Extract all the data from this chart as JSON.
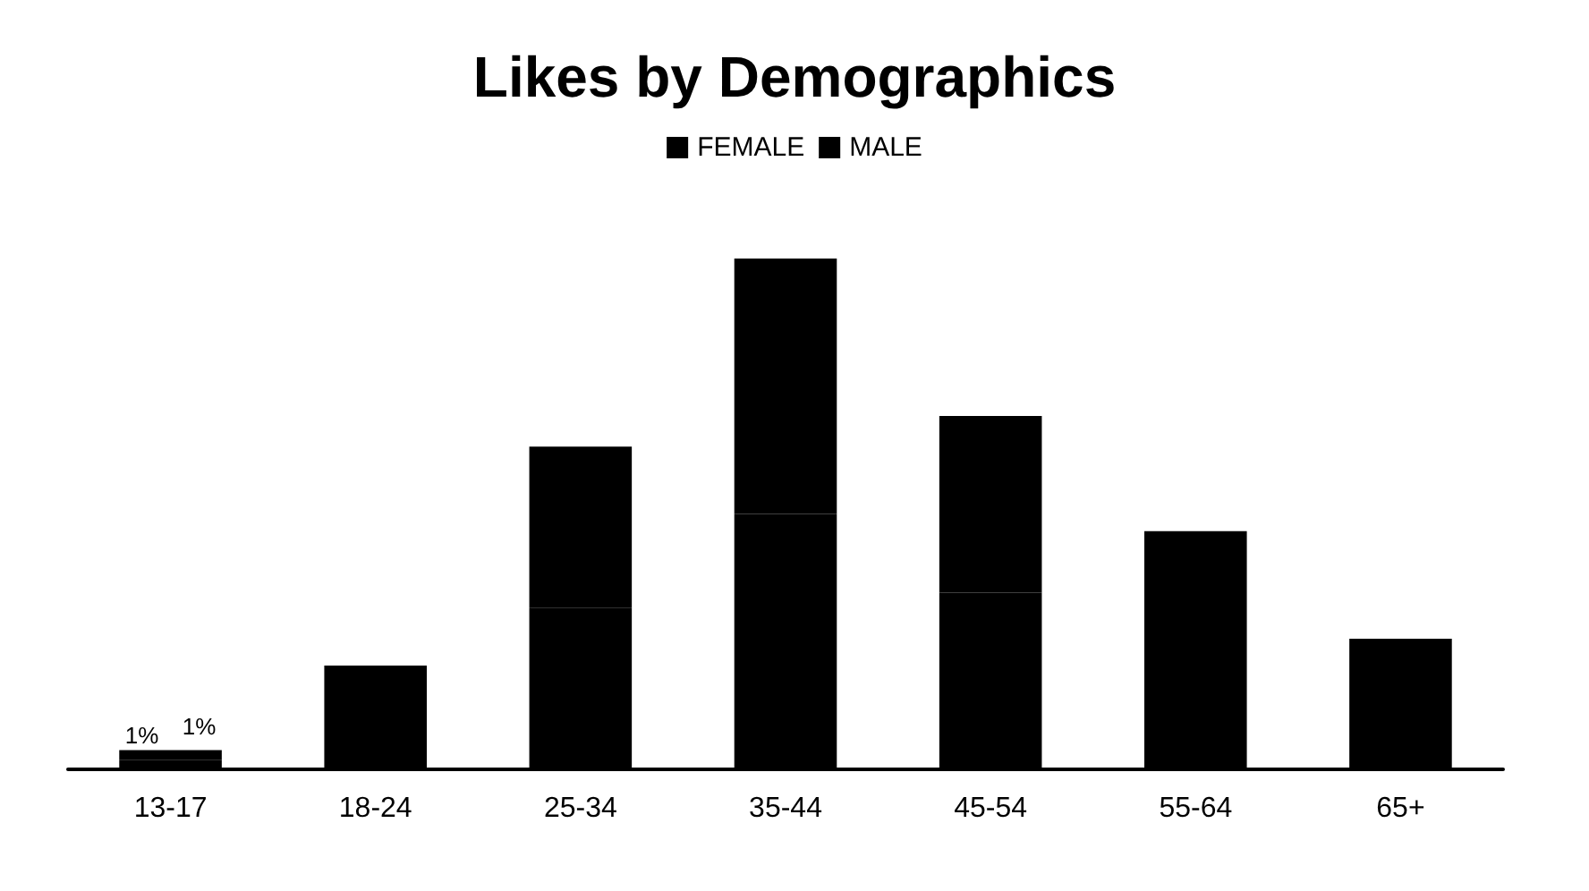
{
  "chart_data": {
    "type": "bar",
    "title": "Likes by Demographics",
    "stacked": true,
    "legend": "top",
    "tick_labels": "x",
    "categories": [
      "13-17",
      "18-24",
      "25-34",
      "35-44",
      "45-54",
      "55-64",
      "65+"
    ],
    "series": [
      {
        "name": "FEMALE",
        "color": "#000000",
        "values": [
          1,
          5.4,
          16.8,
          26.6,
          18.4,
          12.4,
          6.8
        ],
        "value_labels": [
          "1%",
          null,
          null,
          null,
          null,
          null,
          null
        ]
      },
      {
        "name": "MALE",
        "color": "#000000",
        "values": [
          1,
          5.4,
          16.8,
          26.6,
          18.4,
          12.4,
          6.8
        ],
        "value_labels": [
          "1%",
          null,
          null,
          null,
          null,
          null,
          null
        ]
      }
    ]
  }
}
